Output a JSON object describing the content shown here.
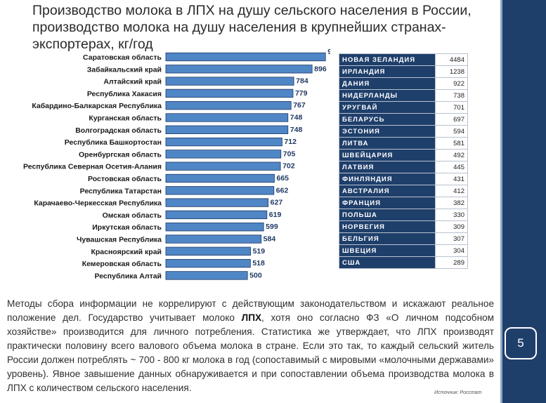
{
  "title_lines": [
    "Производство молока в ЛПХ на душу сельского населения в России,",
    "производство молока на душу  населения в крупнейших странах-",
    "экспортерах, кг/год"
  ],
  "chart_data": {
    "type": "bar",
    "orientation": "horizontal",
    "categories": [
      "Саратовская область",
      "Забайкальский край",
      "Алтайский край",
      "Республика Хакасия",
      "Кабардино-Балкарская Республика",
      "Курганская область",
      "Волгоградская область",
      "Республика Башкортостан",
      "Оренбургская область",
      "Республика Северная Осетия-Алания",
      "Ростовская область",
      "Республика Татарстан",
      "Карачаево-Черкесская Республика",
      "Омская область",
      "Иркутская область",
      "Чувашская Республика",
      "Красноярский край",
      "Кемеровская область",
      "Республика Алтай"
    ],
    "values": [
      978,
      896,
      784,
      779,
      767,
      748,
      748,
      712,
      705,
      702,
      665,
      662,
      627,
      619,
      599,
      584,
      519,
      518,
      500
    ],
    "xlim": [
      0,
      990
    ],
    "bar_color": "#4f86c6",
    "grid": false
  },
  "table": {
    "rows": [
      {
        "country": "НОВАЯ ЗЕЛАНДИЯ",
        "value": "4484"
      },
      {
        "country": "ИРЛАНДИЯ",
        "value": "1238"
      },
      {
        "country": "ДАНИЯ",
        "value": "922"
      },
      {
        "country": "НИДЕРЛАНДЫ",
        "value": "738"
      },
      {
        "country": "УРУГВАЙ",
        "value": "701"
      },
      {
        "country": "БЕЛАРУСЬ",
        "value": "697"
      },
      {
        "country": "ЭСТОНИЯ",
        "value": "594"
      },
      {
        "country": "ЛИТВА",
        "value": "581"
      },
      {
        "country": "ШВЕЙЦАРИЯ",
        "value": "492"
      },
      {
        "country": "ЛАТВИЯ",
        "value": "445"
      },
      {
        "country": "ФИНЛЯНДИЯ",
        "value": "431"
      },
      {
        "country": "АВСТРАЛИЯ",
        "value": "412"
      },
      {
        "country": "ФРАНЦИЯ",
        "value": "382"
      },
      {
        "country": "ПОЛЬША",
        "value": "330"
      },
      {
        "country": "НОРВЕГИЯ",
        "value": "309"
      },
      {
        "country": "БЕЛЬГИЯ",
        "value": "307"
      },
      {
        "country": "ШВЕЦИЯ",
        "value": "304"
      },
      {
        "country": "США",
        "value": "289"
      }
    ]
  },
  "body": {
    "part1": "Методы сбора информации не коррелируют с действующим законодательством и искажают реальное положение дел. Государство учитывает молоко ",
    "bold": "ЛПХ",
    "part2": ", хотя оно согласно ФЗ «О личном подсобном хозяйстве» производится для личного потребления. Статистика же утверждает, что ЛПХ производят практически половину всего валового объема молока в стране. Если это так, то каждый сельский житель России должен потреблять ~ 700 - 800 кг молока в год (сопоставимый с мировыми «молочными державами» уровень). Явное завышение данных обнаруживается и при сопоставлении объема производства молока в ЛПХ с количеством сельского населения."
  },
  "source": "Источник: Росстат",
  "page_number": "5",
  "colors": {
    "accent": "#1f3f6b",
    "bar": "#4f86c6"
  }
}
